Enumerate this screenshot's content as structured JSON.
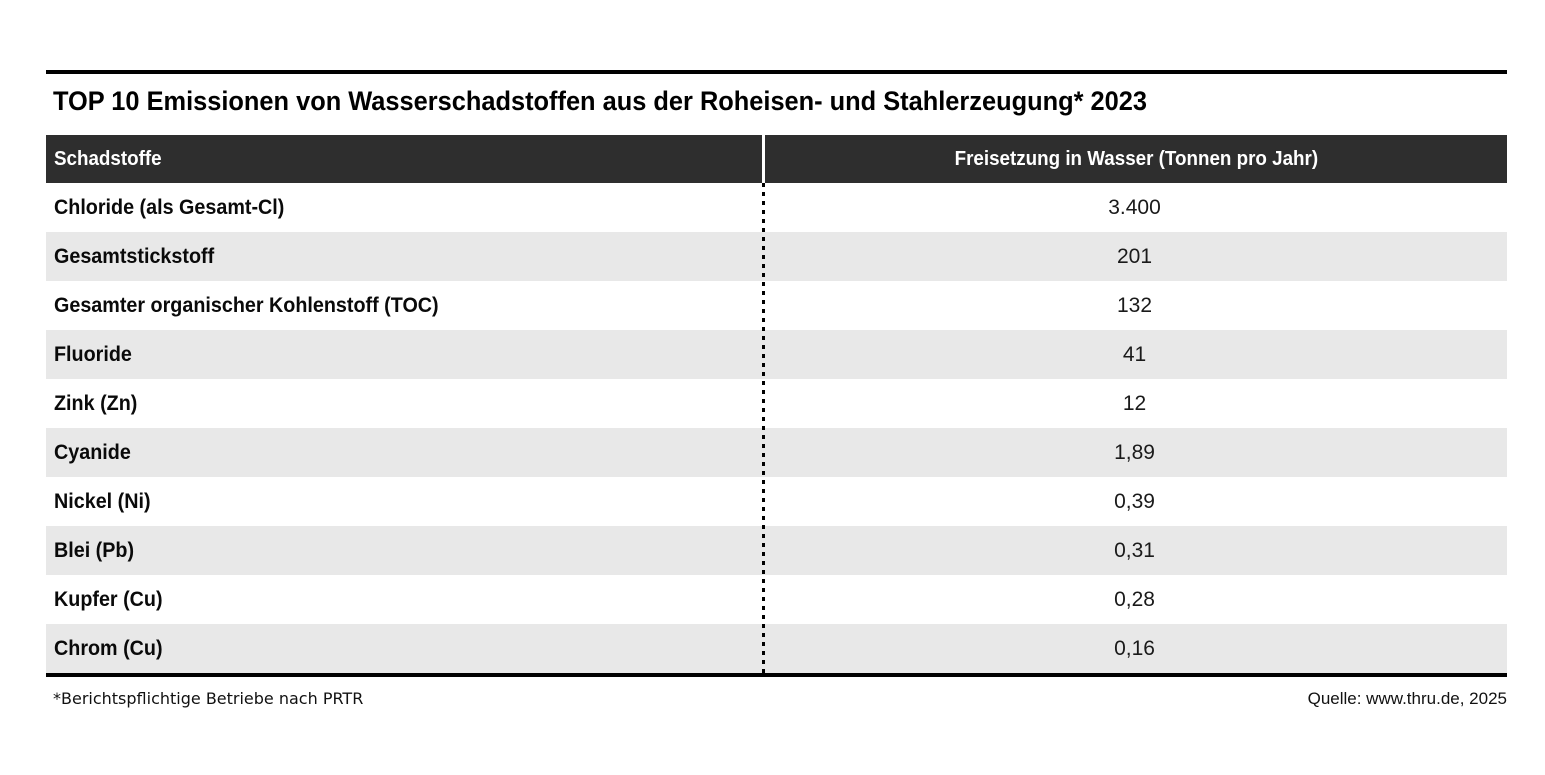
{
  "page": {
    "title": "TOP 10 Emissionen von Wasserschadstoffen aus der Roheisen- und Stahlerzeugung* 2023"
  },
  "table": {
    "columns": [
      "Schadstoffe",
      "Freisetzung in Wasser (Tonnen pro Jahr)"
    ],
    "rows": [
      {
        "label": "Chloride (als Gesamt-Cl)",
        "value": "3.400"
      },
      {
        "label": "Gesamtstickstoff",
        "value": "201"
      },
      {
        "label": "Gesamter organischer Kohlenstoff (TOC)",
        "value": "132"
      },
      {
        "label": "Fluoride",
        "value": "41"
      },
      {
        "label": "Zink (Zn)",
        "value": "12"
      },
      {
        "label": "Cyanide",
        "value": "1,89"
      },
      {
        "label": "Nickel (Ni)",
        "value": "0,39"
      },
      {
        "label": "Blei (Pb)",
        "value": "0,31"
      },
      {
        "label": "Kupfer (Cu)",
        "value": "0,28"
      },
      {
        "label": "Chrom (Cu)",
        "value": "0,16"
      }
    ]
  },
  "footer": {
    "footnote": "*Berichtspflichtige Betriebe nach PRTR",
    "source": "Quelle: www.thru.de, 2025"
  },
  "colors": {
    "header_bg": "#2e2e2e",
    "header_text": "#ffffff",
    "row_alt_bg": "#e8e8e8",
    "rule": "#000000"
  },
  "chart_data": {
    "type": "table",
    "title": "TOP 10 Emissionen von Wasserschadstoffen aus der Roheisen- und Stahlerzeugung* 2023",
    "columns": [
      "Schadstoffe",
      "Freisetzung in Wasser (Tonnen pro Jahr)"
    ],
    "categories": [
      "Chloride (als Gesamt-Cl)",
      "Gesamtstickstoff",
      "Gesamter organischer Kohlenstoff (TOC)",
      "Fluoride",
      "Zink (Zn)",
      "Cyanide",
      "Nickel (Ni)",
      "Blei (Pb)",
      "Kupfer (Cu)",
      "Chrom (Cu)"
    ],
    "values": [
      3400,
      201,
      132,
      41,
      12,
      1.89,
      0.39,
      0.31,
      0.28,
      0.16
    ],
    "values_displayed": [
      "3.400",
      "201",
      "132",
      "41",
      "12",
      "1,89",
      "0,39",
      "0,31",
      "0,28",
      "0,16"
    ],
    "unit": "Tonnen pro Jahr",
    "footnote": "*Berichtspflichtige Betriebe nach PRTR",
    "source": "Quelle: www.thru.de, 2025"
  }
}
